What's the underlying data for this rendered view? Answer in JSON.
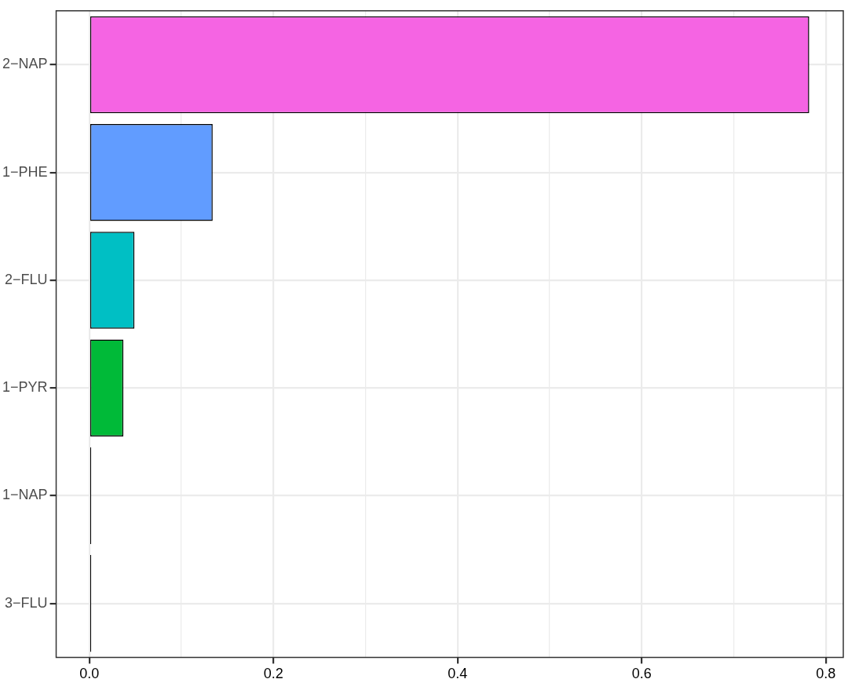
{
  "chart_data": {
    "type": "bar",
    "orientation": "horizontal",
    "categories": [
      "2−NAP",
      "1−PHE",
      "2−FLU",
      "1−PYR",
      "1−NAP",
      "3−FLU"
    ],
    "values": [
      0.782,
      0.134,
      0.049,
      0.037,
      0.002,
      0.002
    ],
    "colors": [
      "#f564e3",
      "#619cff",
      "#00bfc4",
      "#00ba38",
      "#000000",
      "#000000"
    ],
    "xlim": [
      -0.036,
      0.819
    ],
    "xticks": [
      {
        "value": 0,
        "label": "0.0"
      },
      {
        "value": 0.1,
        "label": null
      },
      0.2,
      {
        "value": 0.3,
        "label": null
      },
      0.4,
      {
        "value": 0.5,
        "label": null
      },
      0.6,
      {
        "value": 0.7,
        "label": null
      },
      0.8
    ],
    "grid": true,
    "legend": false
  }
}
